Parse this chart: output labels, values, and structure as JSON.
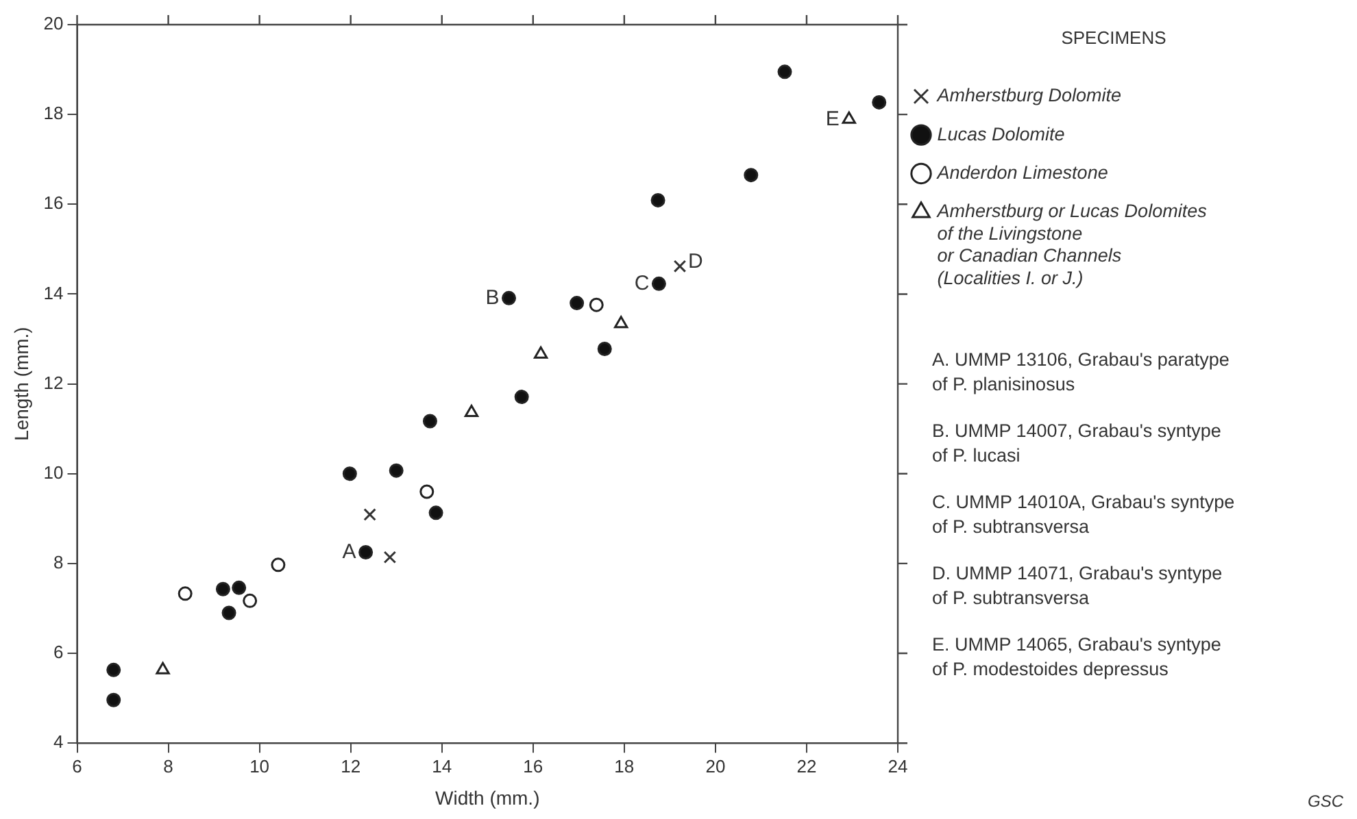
{
  "chart_data": {
    "type": "scatter",
    "xlabel": "Width (mm.)",
    "ylabel": "Length (mm.)",
    "legend_title": "SPECIMENS",
    "legend": "right",
    "xlim": [
      6,
      24
    ],
    "xticks": [
      6,
      8,
      10,
      12,
      14,
      16,
      18,
      20,
      22,
      24
    ],
    "ylim": [
      4,
      20
    ],
    "yticks": [
      4,
      6,
      8,
      10,
      12,
      14,
      16,
      18,
      20
    ],
    "grid": false,
    "series": [
      {
        "name": "Amherstburg Dolomite",
        "color": "#333333",
        "marker": "cross",
        "x": [
          12.42,
          12.86,
          19.22
        ],
        "values": [
          9.09,
          8.14,
          14.62
        ]
      },
      {
        "name": "Lucas Dolomite",
        "color": "#111111",
        "marker": "circle",
        "x": [
          6.8,
          6.8,
          9.2,
          9.55,
          9.33,
          11.98,
          13.0,
          13.74,
          13.87,
          12.33,
          15.47,
          16.96,
          17.57,
          15.75,
          18.76,
          18.74,
          20.78,
          23.59,
          21.52
        ],
        "values": [
          5.63,
          4.96,
          7.43,
          7.46,
          6.9,
          10.0,
          10.07,
          11.17,
          9.13,
          8.25,
          13.91,
          13.8,
          12.78,
          11.71,
          14.23,
          16.09,
          16.65,
          18.27,
          18.95
        ]
      },
      {
        "name": "Anderdon Limestone",
        "color": "#ffffff",
        "marker": "circle",
        "x": [
          8.37,
          9.79,
          10.41,
          13.67,
          17.39
        ],
        "values": [
          7.33,
          7.17,
          7.97,
          9.6,
          13.76
        ]
      },
      {
        "name": "Amherstburg or Lucas Dolomites\nof the Livingstone\nor Canadian Channels\n(Localities I. or J.)",
        "color": "#ffffff",
        "marker": "triangle",
        "x": [
          7.88,
          14.65,
          16.17,
          17.93,
          22.93
        ],
        "values": [
          5.63,
          11.36,
          12.66,
          13.34,
          17.89
        ]
      }
    ],
    "annotations": [
      {
        "text": "A",
        "x": 12.33,
        "y": 8.25
      },
      {
        "text": "B",
        "x": 15.47,
        "y": 13.91
      },
      {
        "text": "C",
        "x": 18.76,
        "y": 14.23
      },
      {
        "text": "D",
        "x": 19.22,
        "y": 14.62
      },
      {
        "text": "E",
        "x": 22.93,
        "y": 17.89
      },
      "A. UMMP 13106, Grabau's paratype\nof P. planisinosus",
      "B. UMMP 14007, Grabau's syntype\nof P. lucasi",
      "C. UMMP 14010A, Grabau's syntype\nof P. subtransversa",
      "D. UMMP 14071, Grabau's syntype\nof P. subtransversa",
      "E. UMMP 14065, Grabau's syntype\nof P. modestoides depressus",
      "GSC"
    ]
  }
}
